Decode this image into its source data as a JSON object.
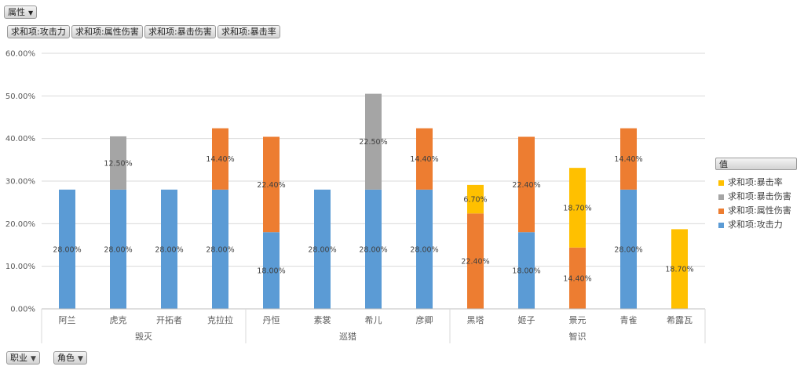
{
  "filters": {
    "attribute_label": "属性",
    "value_fields": [
      "求和项:攻击力",
      "求和项:属性伤害",
      "求和项:暴击伤害",
      "求和项:暴击率"
    ],
    "row_fields": [
      "职业",
      "角色"
    ]
  },
  "legend": {
    "title": "值",
    "items": [
      {
        "label": "求和项:暴击率",
        "color": "#ffc000"
      },
      {
        "label": "求和项:暴击伤害",
        "color": "#a5a5a5"
      },
      {
        "label": "求和项:属性伤害",
        "color": "#ed7d31"
      },
      {
        "label": "求和项:攻击力",
        "color": "#5b9bd5"
      }
    ]
  },
  "chart_data": {
    "type": "bar",
    "stacked": true,
    "ylim": [
      0,
      60
    ],
    "y_ticks": [
      "0.00%",
      "10.00%",
      "20.00%",
      "30.00%",
      "40.00%",
      "50.00%",
      "60.00%"
    ],
    "grid": true,
    "legend_position": "right",
    "categories": [
      "阿兰",
      "虎克",
      "开拓者",
      "克拉拉",
      "丹恒",
      "素裳",
      "希儿",
      "彦卿",
      "黑塔",
      "姬子",
      "景元",
      "青雀",
      "希露瓦"
    ],
    "groups": [
      {
        "name": "毁灭",
        "count": 4
      },
      {
        "name": "巡猎",
        "count": 4
      },
      {
        "name": "智识",
        "count": 5
      }
    ],
    "series": [
      {
        "name": "求和项:攻击力",
        "color": "#5b9bd5",
        "values": [
          28,
          28,
          28,
          28,
          18,
          28,
          28,
          28,
          null,
          18,
          null,
          28,
          null
        ],
        "labels": [
          "28.00%",
          "28.00%",
          "28.00%",
          "28.00%",
          "18.00%",
          "28.00%",
          "28.00%",
          "28.00%",
          "",
          "18.00%",
          "",
          "28.00%",
          ""
        ]
      },
      {
        "name": "求和项:属性伤害",
        "color": "#ed7d31",
        "values": [
          null,
          null,
          null,
          14.4,
          22.4,
          null,
          null,
          14.4,
          22.4,
          22.4,
          14.4,
          14.4,
          null
        ],
        "labels": [
          "",
          "",
          "",
          "14.40%",
          "22.40%",
          "",
          "",
          "14.40%",
          "22.40%",
          "22.40%",
          "14.40%",
          "14.40%",
          ""
        ]
      },
      {
        "name": "求和项:暴击伤害",
        "color": "#a5a5a5",
        "values": [
          null,
          12.5,
          null,
          null,
          null,
          null,
          22.5,
          null,
          null,
          null,
          null,
          null,
          null
        ],
        "labels": [
          "",
          "12.50%",
          "",
          "",
          "",
          "",
          "22.50%",
          "",
          "",
          "",
          "",
          "",
          ""
        ]
      },
      {
        "name": "求和项:暴击率",
        "color": "#ffc000",
        "values": [
          null,
          null,
          null,
          null,
          null,
          null,
          null,
          null,
          6.7,
          null,
          18.7,
          null,
          18.7
        ],
        "labels": [
          "",
          "",
          "",
          "",
          "",
          "",
          "",
          "",
          "6.70%",
          "",
          "18.70%",
          "",
          "18.70%"
        ]
      }
    ]
  }
}
